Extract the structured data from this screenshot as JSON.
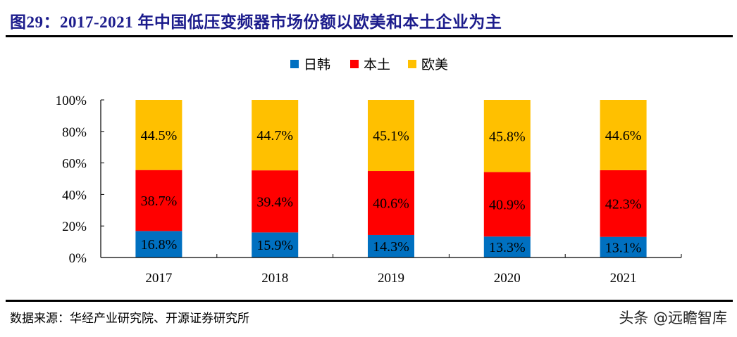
{
  "header": {
    "title": "图29：2017-2021 年中国低压变频器市场份额以欧美和本土企业为主"
  },
  "footer": {
    "source": "数据来源：华经产业研究院、开源证券研究所",
    "watermark": "头条 @远瞻智库"
  },
  "chart_data": {
    "type": "bar",
    "stacked": true,
    "percent": true,
    "title": "",
    "xlabel": "",
    "ylabel": "",
    "categories": [
      "2017",
      "2018",
      "2019",
      "2020",
      "2021"
    ],
    "series": [
      {
        "name": "日韩",
        "color": "#0070C0",
        "values": [
          16.8,
          15.9,
          14.3,
          13.3,
          13.1
        ],
        "labels": [
          "16.8%",
          "15.9%",
          "14.3%",
          "13.3%",
          "13.1%"
        ]
      },
      {
        "name": "本土",
        "color": "#FF0000",
        "values": [
          38.7,
          39.4,
          40.6,
          40.9,
          42.3
        ],
        "labels": [
          "38.7%",
          "39.4%",
          "40.6%",
          "40.9%",
          "42.3%"
        ]
      },
      {
        "name": "欧美",
        "color": "#FFC000",
        "values": [
          44.5,
          44.7,
          45.1,
          45.8,
          44.6
        ],
        "labels": [
          "44.5%",
          "44.7%",
          "45.1%",
          "45.8%",
          "44.6%"
        ]
      }
    ],
    "ylim": [
      0,
      100
    ],
    "yticks": [
      0,
      20,
      40,
      60,
      80,
      100
    ],
    "ytick_labels": [
      "0%",
      "20%",
      "40%",
      "60%",
      "80%",
      "100%"
    ],
    "grid": false,
    "legend_position": "top-center"
  }
}
